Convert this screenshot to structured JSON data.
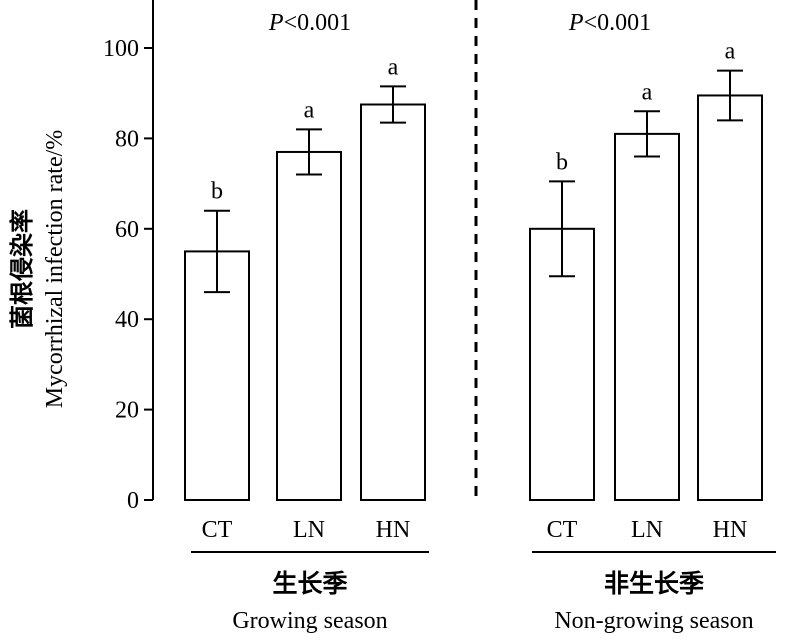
{
  "chart_data": {
    "type": "bar",
    "ylabel_cn": "菌根侵染率",
    "ylabel_en": "Mycorrhizal infection rate/%",
    "ylim": [
      0,
      100
    ],
    "y_ticks": [
      0,
      20,
      40,
      60,
      80,
      100
    ],
    "error_bars": true,
    "groups": [
      {
        "name_cn": "生长季",
        "name_en": "Growing season",
        "p_label": "P<0.001",
        "categories": [
          "CT",
          "LN",
          "HN"
        ],
        "values": [
          55,
          77,
          87.5
        ],
        "errors": [
          9,
          5,
          4
        ],
        "letters": [
          "b",
          "a",
          "a"
        ]
      },
      {
        "name_cn": "非生长季",
        "name_en": "Non-growing season",
        "p_label": "P<0.001",
        "categories": [
          "CT",
          "LN",
          "HN"
        ],
        "values": [
          60,
          81,
          89.5
        ],
        "errors": [
          10.5,
          5,
          5.5
        ],
        "letters": [
          "b",
          "a",
          "a"
        ]
      }
    ]
  }
}
